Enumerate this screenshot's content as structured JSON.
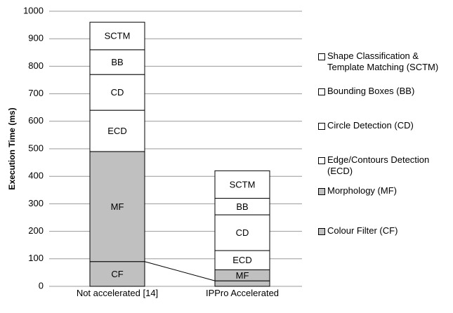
{
  "chart_data": {
    "type": "stacked_bar",
    "y_label": "Execution Time (ms)",
    "categories": [
      "Not accelerated [14]",
      "IPPro Accelerated"
    ],
    "ylim": [
      0,
      1000
    ],
    "yticks": [
      0,
      100,
      200,
      300,
      400,
      500,
      600,
      700,
      800,
      900,
      1000
    ],
    "grid": true,
    "series": [
      {
        "name": "Colour Filter (CF)",
        "color": "#c0c0c0",
        "values": [
          90,
          20
        ],
        "segment_labels": [
          "CF",
          null
        ]
      },
      {
        "name": "Morphology (MF)",
        "color": "#c0c0c0",
        "values": [
          400,
          40
        ],
        "segment_labels": [
          "MF",
          "MF"
        ]
      },
      {
        "name": "Edge/Contours Detection (ECD)",
        "color": "#ffffff",
        "values": [
          150,
          70
        ],
        "segment_labels": [
          "ECD",
          "ECD"
        ]
      },
      {
        "name": "Circle Detection (CD)",
        "color": "#ffffff",
        "values": [
          130,
          130
        ],
        "segment_labels": [
          "CD",
          "CD"
        ]
      },
      {
        "name": "Bounding Boxes (BB)",
        "color": "#ffffff",
        "values": [
          90,
          60
        ],
        "segment_labels": [
          "BB",
          "BB"
        ]
      },
      {
        "name": "Shape Classification & Template Matching (SCTM)",
        "color": "#ffffff",
        "values": [
          100,
          100
        ],
        "segment_labels": [
          "SCTM",
          "SCTM"
        ]
      }
    ]
  }
}
